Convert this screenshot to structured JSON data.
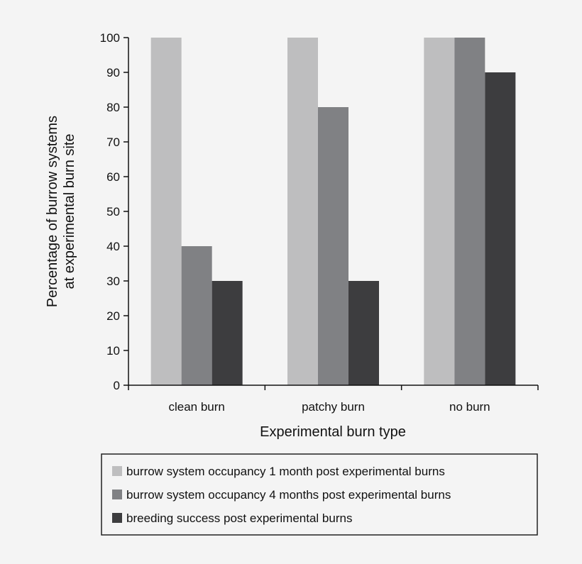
{
  "chart_data": {
    "type": "bar",
    "categories": [
      "clean burn",
      "patchy burn",
      "no burn"
    ],
    "series": [
      {
        "name": "burrow system occupancy 1 month post experimental burns",
        "values": [
          100,
          100,
          100
        ],
        "color": "#bebebf"
      },
      {
        "name": "burrow system occupancy 4 months post experimental burns",
        "values": [
          40,
          80,
          100
        ],
        "color": "#808184"
      },
      {
        "name": "breeding success post experimental burns",
        "values": [
          30,
          30,
          90
        ],
        "color": "#3d3d3f"
      }
    ],
    "title": "",
    "xlabel": "Experimental burn type",
    "ylabel_lines": [
      "Percentage of burrow systems",
      "at experimental burn site"
    ],
    "ylim": [
      0,
      100
    ],
    "yticks": [
      0,
      10,
      20,
      30,
      40,
      50,
      60,
      70,
      80,
      90,
      100
    ],
    "grid": false,
    "legend_position": "bottom"
  }
}
